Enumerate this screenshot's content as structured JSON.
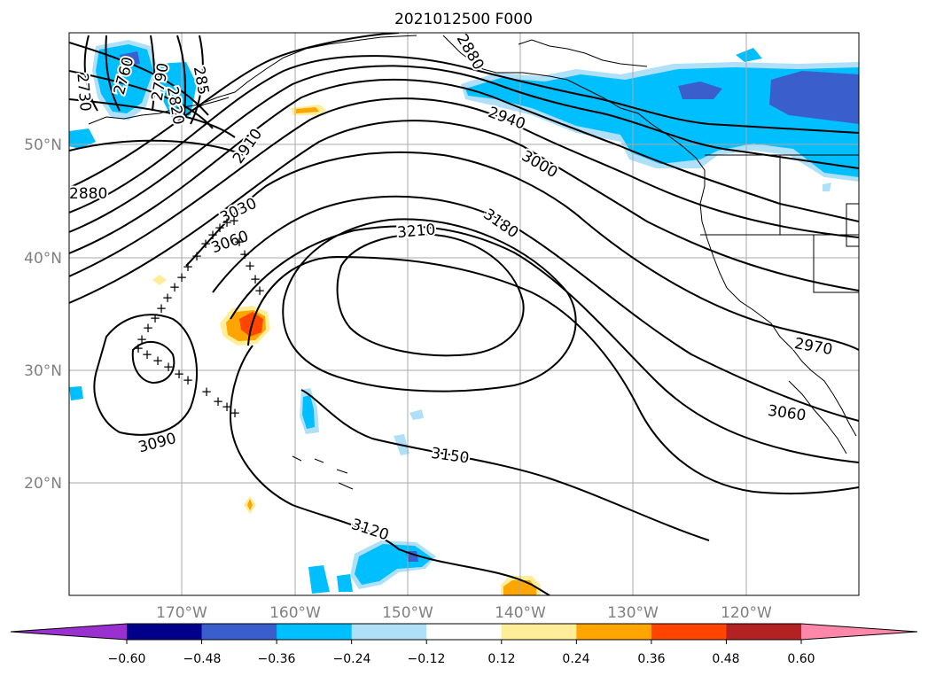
{
  "title": "2021012500 F000",
  "map": {
    "lat_labels": [
      "50°N",
      "40°N",
      "30°N",
      "20°N"
    ],
    "lon_labels": [
      "170°W",
      "160°W",
      "150°W",
      "140°W",
      "130°W",
      "120°W"
    ],
    "contour_labels": [
      "2730",
      "2760",
      "2790",
      "2820",
      "285",
      "2880",
      "2910",
      "2940",
      "2880",
      "3000",
      "3030",
      "3060",
      "3090",
      "3210",
      "3180",
      "3150",
      "3120",
      "3060",
      "2970"
    ],
    "high_markers": [
      "+"
    ]
  },
  "colorbar": {
    "tick_labels": [
      "−0.60",
      "−0.48",
      "−0.36",
      "−0.24",
      "−0.12",
      "0.12",
      "0.24",
      "0.36",
      "0.48",
      "0.60"
    ],
    "colors": [
      "#9b30d0",
      "#00008b",
      "#3a5fcd",
      "#00bfff",
      "#b0e0f8",
      "#ffffff",
      "#ffee99",
      "#ffa500",
      "#ff4500",
      "#b22222",
      "#ff88aa"
    ]
  }
}
